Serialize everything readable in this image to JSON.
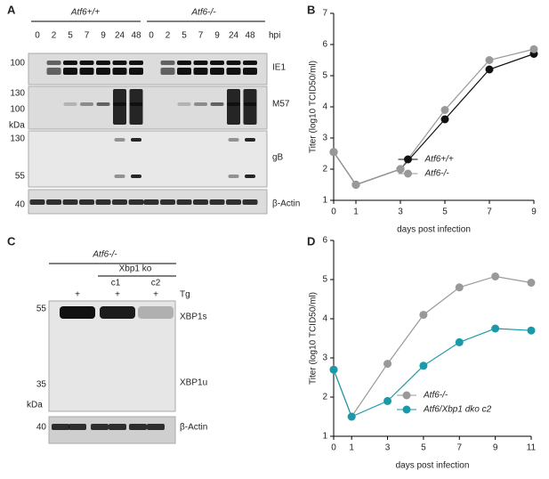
{
  "figure": {
    "panel_labels": [
      "A",
      "B",
      "C",
      "D"
    ],
    "blot_a": {
      "groups": [
        "Atf6+/+",
        "Atf6-/-"
      ],
      "timepoints": [
        "0",
        "2",
        "5",
        "7",
        "9",
        "24",
        "48"
      ],
      "unit": "hpi",
      "markers": [
        "100",
        "130",
        "100",
        "kDa",
        "130",
        "55",
        "40"
      ],
      "proteins": [
        "IE1",
        "M57",
        "gB",
        "β-Actin"
      ]
    },
    "blot_c": {
      "group": "Atf6-/-",
      "ko": "Xbp1 ko",
      "clones": [
        "c1",
        "c2"
      ],
      "treatment": [
        "+",
        "+",
        "+"
      ],
      "treatment_name": "Tg",
      "markers": [
        "55",
        "35",
        "kDa",
        "40"
      ],
      "proteins": [
        "XBP1s",
        "XBP1u",
        "β-Actin"
      ]
    }
  },
  "chart_data": [
    {
      "type": "line",
      "y_label": "Titer (log10 TCID50/ml)",
      "x_label": "days post infection",
      "x": [
        0,
        1,
        3,
        5,
        7,
        9
      ],
      "xlim": [
        0,
        9
      ],
      "xticks": [
        0,
        1,
        3,
        5,
        7,
        9
      ],
      "ylim": [
        1,
        7
      ],
      "yticks": [
        1,
        2,
        3,
        4,
        5,
        6,
        7
      ],
      "legend": "lower right",
      "series": [
        {
          "name": "Atf6+/+",
          "color": "#111111",
          "values": [
            2.55,
            1.5,
            2.0,
            3.6,
            5.2,
            5.7
          ]
        },
        {
          "name": "Atf6-/-",
          "color": "#999999",
          "values": [
            2.55,
            1.5,
            2.0,
            3.9,
            5.5,
            5.85
          ]
        }
      ]
    },
    {
      "type": "line",
      "y_label": "Titer (log10 TCID50/ml)",
      "x_label": "days post infection",
      "x": [
        0,
        1,
        3,
        5,
        7,
        9,
        11
      ],
      "xlim": [
        0,
        11
      ],
      "xticks": [
        0,
        1,
        3,
        5,
        7,
        9,
        11
      ],
      "ylim": [
        1,
        6
      ],
      "yticks": [
        1,
        2,
        3,
        4,
        5,
        6
      ],
      "legend": "lower right",
      "series": [
        {
          "name": "Atf6-/-",
          "color": "#999999",
          "values": [
            2.7,
            1.5,
            2.85,
            4.1,
            4.8,
            5.08,
            4.92
          ]
        },
        {
          "name": "Atf6/Xbp1 dko c2",
          "color": "#1a9aa8",
          "values": [
            2.7,
            1.5,
            1.9,
            2.8,
            3.4,
            3.75,
            3.7
          ]
        }
      ]
    }
  ]
}
